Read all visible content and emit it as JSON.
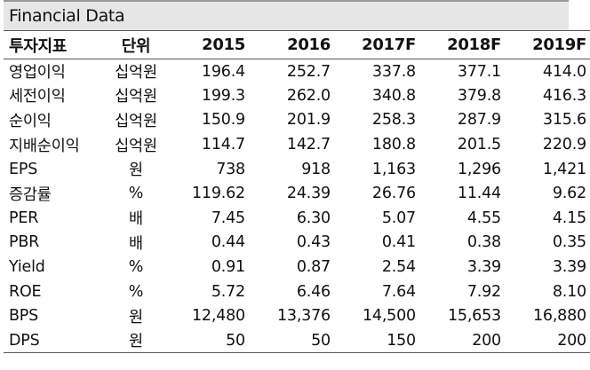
{
  "title": "Financial Data",
  "headers": {
    "metric": "투자지표",
    "unit": "단위",
    "years": [
      "2015",
      "2016",
      "2017F",
      "2018F",
      "2019F"
    ]
  },
  "rows": [
    {
      "metric": "영업이익",
      "unit": "십억원",
      "values": [
        "196.4",
        "252.7",
        "337.8",
        "377.1",
        "414.0"
      ]
    },
    {
      "metric": "세전이익",
      "unit": "십억원",
      "values": [
        "199.3",
        "262.0",
        "340.8",
        "379.8",
        "416.3"
      ]
    },
    {
      "metric": "순이익",
      "unit": "십억원",
      "values": [
        "150.9",
        "201.9",
        "258.3",
        "287.9",
        "315.6"
      ]
    },
    {
      "metric": "지배순이익",
      "unit": "십억원",
      "values": [
        "114.7",
        "142.7",
        "180.8",
        "201.5",
        "220.9"
      ]
    },
    {
      "metric": "EPS",
      "unit": "원",
      "values": [
        "738",
        "918",
        "1,163",
        "1,296",
        "1,421"
      ]
    },
    {
      "metric": "증감률",
      "unit": "%",
      "values": [
        "119.62",
        "24.39",
        "26.76",
        "11.44",
        "9.62"
      ]
    },
    {
      "metric": "PER",
      "unit": "배",
      "values": [
        "7.45",
        "6.30",
        "5.07",
        "4.55",
        "4.15"
      ]
    },
    {
      "metric": "PBR",
      "unit": "배",
      "values": [
        "0.44",
        "0.43",
        "0.41",
        "0.38",
        "0.35"
      ]
    },
    {
      "metric": "Yield",
      "unit": "%",
      "values": [
        "0.91",
        "0.87",
        "2.54",
        "3.39",
        "3.39"
      ]
    },
    {
      "metric": "ROE",
      "unit": "%",
      "values": [
        "5.72",
        "6.46",
        "7.64",
        "7.92",
        "8.10"
      ]
    },
    {
      "metric": "BPS",
      "unit": "원",
      "values": [
        "12,480",
        "13,376",
        "14,500",
        "15,653",
        "16,880"
      ]
    },
    {
      "metric": "DPS",
      "unit": "원",
      "values": [
        "50",
        "50",
        "150",
        "200",
        "200"
      ]
    }
  ]
}
